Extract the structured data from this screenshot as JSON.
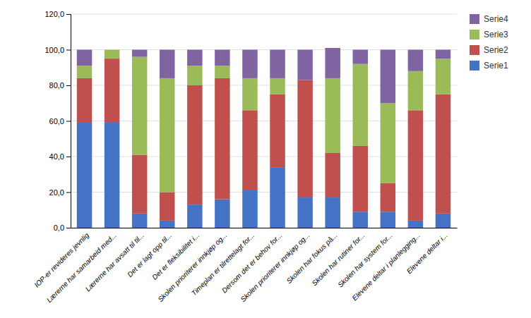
{
  "chart_data": {
    "type": "bar",
    "stacked": true,
    "grid": true,
    "legend": "right",
    "categories": [
      "IOP-er revideres jevnlig",
      "Lærerne har samarbeid med...",
      "Lærerne har avsatt til til...",
      "Det er lagt opp til...",
      "Det er fleksibilitet i...",
      "Skolen prioriterer innkjøp og...",
      "Timeplan er tilrettelagt for...",
      "Dersom det er behov for...",
      "Skolen prioriterer innkjøp og...",
      "Skolen har fokus på...",
      "Skolen har rutiner for...",
      "Skolen har system for...",
      "Elevene deltar i planlegging...",
      "Elevene deltar i..."
    ],
    "series": [
      {
        "name": "Serie1",
        "color": "#4472C4",
        "values": [
          59.0,
          59.0,
          8.0,
          4.0,
          13.0,
          16.0,
          21.0,
          34.0,
          17.0,
          17.0,
          9.0,
          9.0,
          4.0,
          8.0
        ]
      },
      {
        "name": "Serie2",
        "color": "#C0504D",
        "values": [
          25.0,
          36.0,
          33.0,
          16.0,
          67.0,
          68.0,
          45.0,
          41.0,
          66.0,
          25.0,
          37.0,
          16.0,
          62.0,
          67.0
        ]
      },
      {
        "name": "Serie3",
        "color": "#9BBB59",
        "values": [
          7.0,
          5.0,
          55.0,
          64.0,
          11.0,
          7.0,
          18.0,
          9.0,
          0.0,
          42.0,
          46.0,
          45.0,
          22.0,
          20.0
        ]
      },
      {
        "name": "Serie4",
        "color": "#8064A2",
        "values": [
          9.0,
          0.0,
          4.0,
          16.0,
          9.0,
          9.0,
          16.0,
          16.0,
          17.0,
          17.0,
          8.0,
          30.0,
          12.0,
          5.0
        ]
      }
    ],
    "ylim": [
      0,
      120
    ],
    "yticks": [
      {
        "value": 0,
        "label": "0,0"
      },
      {
        "value": 20,
        "label": "20,0"
      },
      {
        "value": 40,
        "label": "40,0"
      },
      {
        "value": 60,
        "label": "60,0"
      },
      {
        "value": 80,
        "label": "80,0"
      },
      {
        "value": 100,
        "label": "100,0"
      },
      {
        "value": 120,
        "label": "120,0"
      }
    ]
  }
}
